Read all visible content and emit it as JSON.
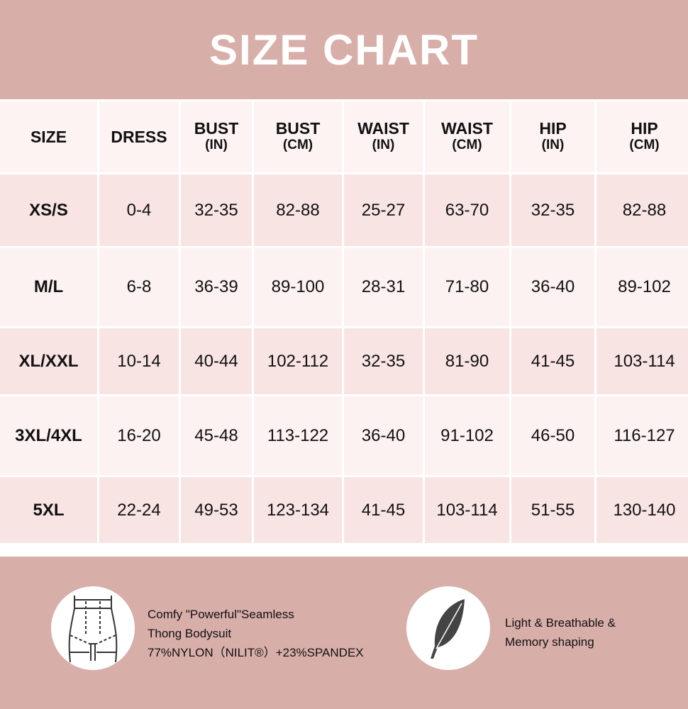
{
  "title": "SIZE CHART",
  "columns": [
    {
      "label": "SIZE",
      "unit": ""
    },
    {
      "label": "DRESS",
      "unit": ""
    },
    {
      "label": "BUST",
      "unit": "(IN)"
    },
    {
      "label": "BUST",
      "unit": "(CM)"
    },
    {
      "label": "WAIST",
      "unit": "(IN)"
    },
    {
      "label": "WAIST",
      "unit": "(CM)"
    },
    {
      "label": "HIP",
      "unit": "(IN)"
    },
    {
      "label": "HIP",
      "unit": "(CM)"
    }
  ],
  "rows": [
    [
      "XS/S",
      "0-4",
      "32-35",
      "82-88",
      "25-27",
      "63-70",
      "32-35",
      "82-88"
    ],
    [
      "M/L",
      "6-8",
      "36-39",
      "89-100",
      "28-31",
      "71-80",
      "36-40",
      "89-102"
    ],
    [
      "XL/XXL",
      "10-14",
      "40-44",
      "102-112",
      "32-35",
      "81-90",
      "41-45",
      "103-114"
    ],
    [
      "3XL/4XL",
      "16-20",
      "45-48",
      "113-122",
      "36-40",
      "91-102",
      "46-50",
      "116-127"
    ],
    [
      "5XL",
      "22-24",
      "49-53",
      "123-134",
      "41-45",
      "103-114",
      "51-55",
      "130-140"
    ]
  ],
  "features": [
    {
      "icon": "bodysuit-icon",
      "lines": [
        "Comfy \"Powerful\"Seamless",
        "Thong Bodysuit",
        "77%NYLON（NILIT®）+23%SPANDEX"
      ]
    },
    {
      "icon": "feather-icon",
      "lines": [
        "Light & Breathable &",
        "Memory shaping"
      ]
    }
  ],
  "colors": {
    "accent": "#d8aea9",
    "header_row": "#fdf3f3",
    "row_odd": "#f9e4e4",
    "row_even": "#fdf2f2"
  }
}
